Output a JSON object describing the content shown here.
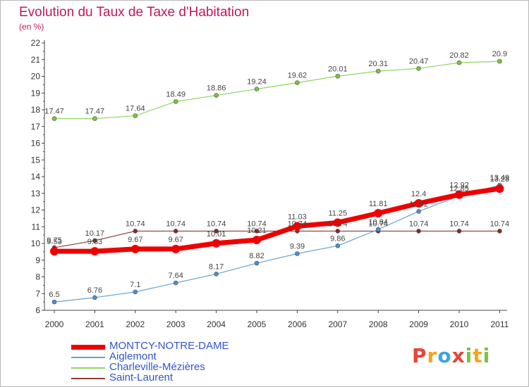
{
  "header": {
    "title": "Evolution du Taux de Taxe d'Habitation",
    "subtitle": "(en %)"
  },
  "logo": {
    "letters": [
      "P",
      "r",
      "o",
      "x",
      "i",
      "t",
      "i"
    ],
    "colors": [
      "#e8443a",
      "#f7a21b",
      "#3da5e0",
      "#e8443a",
      "#7cc242",
      "#f7a21b",
      "#7cc242"
    ]
  },
  "chart_data": {
    "type": "line",
    "x": [
      "2000",
      "2001",
      "2002",
      "2003",
      "2004",
      "2005",
      "2006",
      "2007",
      "2008",
      "2009",
      "2010",
      "2011"
    ],
    "ylim": [
      6,
      22
    ],
    "yticks": [
      "6",
      "7",
      "8",
      "9",
      "10",
      "11",
      "12",
      "13",
      "14",
      "15",
      "16",
      "17",
      "18",
      "19",
      "20",
      "21",
      "22"
    ],
    "grid": false,
    "legend_position": "bottom-left",
    "series": [
      {
        "name": "Charleville-Mézières",
        "color": "#8fd460",
        "point_color": "#7cc242",
        "width": 1.2,
        "radius": 3,
        "values": [
          17.47,
          17.47,
          17.64,
          18.49,
          18.86,
          19.24,
          19.62,
          20.01,
          20.31,
          20.47,
          20.82,
          20.9
        ],
        "labels": [
          "17.47",
          "17.47",
          "17.64",
          "18.49",
          "18.86",
          "19.24",
          "19.62",
          "20.01",
          "20.31",
          "20.47",
          "20.82",
          "20.9"
        ]
      },
      {
        "name": "Saint-Laurent",
        "color": "#8b3a3a",
        "point_color": "#7a2e2e",
        "width": 1.2,
        "radius": 3,
        "values": [
          9.75,
          10.17,
          10.74,
          10.74,
          10.74,
          10.74,
          10.74,
          10.74,
          10.74,
          10.74,
          10.74,
          10.74
        ],
        "labels": [
          "9.75",
          "10.17",
          "10.74",
          "10.74",
          "10.74",
          "10.74",
          "10.74",
          "10.74",
          "10.74",
          "10.74",
          "10.74",
          "10.74"
        ]
      },
      {
        "name": "Aiglemont",
        "color": "#6aa3d1",
        "point_color": "#4a8fd0",
        "width": 1.2,
        "radius": 3,
        "values": [
          6.5,
          6.76,
          7.1,
          7.64,
          8.17,
          8.82,
          9.39,
          9.86,
          10.84,
          11.92,
          12.85,
          13.49
        ],
        "labels": [
          "6.5",
          "6.76",
          "7.1",
          "7.64",
          "8.17",
          "8.82",
          "9.39",
          "9.86",
          "10.84",
          "11.92",
          "12.85",
          "13.49"
        ]
      },
      {
        "name": "MONTCY-NOTRE-DAME",
        "color": "#ee0000",
        "point_color": "#ee0000",
        "width": 7,
        "radius": 6,
        "values": [
          9.53,
          9.53,
          9.67,
          9.67,
          10.01,
          10.21,
          11.03,
          11.25,
          11.81,
          12.4,
          12.92,
          13.28
        ],
        "labels": [
          "9.53",
          "9.53",
          "9.67",
          "9.67",
          "10.01",
          "10.21",
          "11.03",
          "11.25",
          "11.81",
          "12.4",
          "12.92",
          "13.28"
        ]
      }
    ],
    "legend": [
      {
        "name": "MONTCY-NOTRE-DAME",
        "color": "#ee0000",
        "thickness": 7
      },
      {
        "name": "Aiglemont",
        "color": "#6aa3d1",
        "thickness": 2
      },
      {
        "name": "Charleville-Mézières",
        "color": "#8fd460",
        "thickness": 2
      },
      {
        "name": "Saint-Laurent",
        "color": "#8b3a3a",
        "thickness": 2
      }
    ]
  }
}
